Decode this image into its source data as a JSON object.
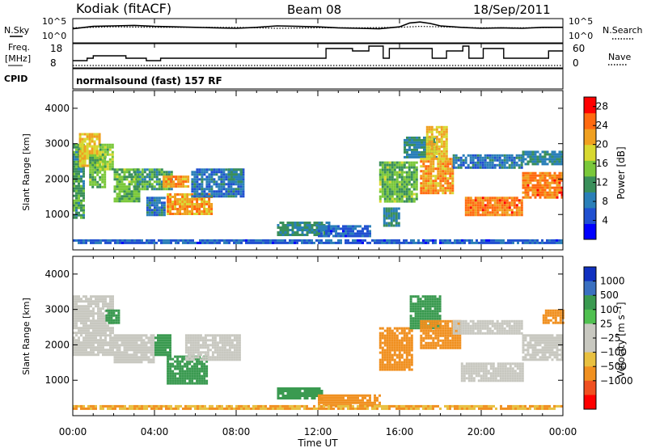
{
  "header": {
    "station": "Kodiak (fitACF)",
    "beam": "Beam 08",
    "date": "18/Sep/2011"
  },
  "status_panel": {
    "left_labels": {
      "nsky": "N.Sky",
      "freq_line1": "Freq.",
      "freq_line2": "[MHz]",
      "cpid": "CPID"
    },
    "right_labels": {
      "nsearch": "N.Search",
      "nave": "Nave"
    },
    "noise_ticks": [
      "10^5",
      "10^0"
    ],
    "freq_ticks": [
      "18",
      "8"
    ],
    "nave_ticks": [
      "60",
      "0"
    ],
    "cpid_text": "normalsound (fast) 157 RF"
  },
  "chart_data": [
    {
      "type": "line",
      "title": "",
      "series": [
        {
          "name": "N.Sky",
          "style": "solid",
          "x": [
            0,
            1,
            2,
            3,
            4,
            5,
            6,
            7,
            8,
            9,
            10,
            11,
            12,
            13,
            14,
            15,
            16,
            16.5,
            17,
            17.5,
            18,
            19,
            20,
            21,
            22,
            23,
            24
          ],
          "y": [
            2.9,
            3.4,
            3.5,
            3.6,
            3.4,
            3.3,
            3.2,
            3.1,
            3.0,
            3.2,
            3.5,
            3.4,
            3.3,
            3.1,
            3.0,
            2.9,
            3.3,
            4.1,
            4.3,
            4.0,
            3.5,
            3.2,
            3.0,
            3.1,
            3.0,
            3.2,
            3.2
          ]
        },
        {
          "name": "N.Search",
          "style": "dotted",
          "x": [
            0,
            2,
            4,
            6,
            8,
            10,
            12,
            14,
            16,
            17,
            18,
            20,
            22,
            24
          ],
          "y": [
            3.1,
            3.3,
            3.2,
            3.2,
            3.2,
            3.0,
            3.1,
            3.1,
            3.2,
            3.4,
            3.3,
            3.1,
            3.1,
            3.2
          ]
        }
      ],
      "ylim_log10": [
        0,
        5
      ]
    },
    {
      "type": "line",
      "title": "",
      "series": [
        {
          "name": "Freq. [MHz]",
          "style": "step",
          "x": [
            0,
            0.7,
            1.0,
            2.6,
            3.1,
            3.6,
            4.3,
            9.5,
            10.1,
            11.3,
            12.0,
            12.4,
            13.7,
            14.5,
            15.0,
            15.2,
            15.5,
            16.4,
            17.1,
            17.6,
            18.3,
            19.1,
            19.4,
            20.1,
            21.1,
            21.5,
            23.3,
            24
          ],
          "y": [
            11,
            12,
            13,
            12,
            12,
            11,
            12,
            12,
            12,
            12,
            12,
            16,
            15,
            17,
            17,
            12,
            16,
            16,
            16,
            12,
            15,
            17,
            12,
            16,
            12,
            12,
            15,
            15
          ]
        },
        {
          "name": "Nave",
          "style": "dotted",
          "x": [
            0,
            4,
            8,
            12,
            16,
            20,
            24
          ],
          "y": [
            6,
            6,
            6,
            6,
            6,
            6,
            6
          ]
        }
      ],
      "ylim": [
        8,
        18
      ],
      "y2lim": [
        0,
        60
      ],
      "yticks": [
        8,
        18
      ],
      "y2ticks": [
        0,
        60
      ]
    },
    {
      "type": "heatmap",
      "title": "",
      "ylabel": "Slant Range [km]",
      "xlabel": "Time UT",
      "xlim": [
        0,
        24
      ],
      "ylim": [
        0,
        4500
      ],
      "yticks": [
        1000,
        2000,
        3000,
        4000
      ],
      "xticks": [
        "00:00",
        "04:00",
        "08:00",
        "12:00",
        "16:00",
        "20:00",
        "00:00"
      ],
      "colorbar": {
        "label": "Power [dB]",
        "ticks": [
          4,
          8,
          12,
          16,
          20,
          24,
          28
        ],
        "range": [
          0,
          30
        ],
        "colors": [
          "#0000ff",
          "#2050d0",
          "#2a7fb8",
          "#3a8f5a",
          "#7ac83a",
          "#d8d830",
          "#f0a020",
          "#ff6a10",
          "#ff0000"
        ]
      },
      "regions": [
        {
          "t0": 0.0,
          "t1": 0.5,
          "r0": 900,
          "r1": 3000,
          "value": 12
        },
        {
          "t0": 0.3,
          "t1": 1.3,
          "r0": 2400,
          "r1": 3300,
          "value": 20
        },
        {
          "t0": 0.8,
          "t1": 1.6,
          "r0": 1800,
          "r1": 2700,
          "value": 14
        },
        {
          "t0": 1.3,
          "t1": 2.0,
          "r0": 2300,
          "r1": 3000,
          "value": 16
        },
        {
          "t0": 2.0,
          "t1": 3.2,
          "r0": 1400,
          "r1": 2300,
          "value": 14
        },
        {
          "t0": 3.0,
          "t1": 4.8,
          "r0": 1700,
          "r1": 2300,
          "value": 12
        },
        {
          "t0": 4.4,
          "t1": 5.6,
          "r0": 1800,
          "r1": 2100,
          "value": 22
        },
        {
          "t0": 3.6,
          "t1": 4.5,
          "r0": 1000,
          "r1": 1500,
          "value": 8
        },
        {
          "t0": 4.6,
          "t1": 6.8,
          "r0": 1000,
          "r1": 1600,
          "value": 22
        },
        {
          "t0": 5.8,
          "t1": 8.3,
          "r0": 1500,
          "r1": 2300,
          "value": 8
        },
        {
          "t0": 7.6,
          "t1": 8.2,
          "r0": 1900,
          "r1": 2300,
          "value": 10
        },
        {
          "t0": 10.0,
          "t1": 12.6,
          "r0": 400,
          "r1": 800,
          "value": 10
        },
        {
          "t0": 12.0,
          "t1": 14.6,
          "r0": 400,
          "r1": 700,
          "value": 6
        },
        {
          "t0": 15.0,
          "t1": 16.8,
          "r0": 1400,
          "r1": 2500,
          "value": 14
        },
        {
          "t0": 15.2,
          "t1": 16.0,
          "r0": 700,
          "r1": 1200,
          "value": 10
        },
        {
          "t0": 16.2,
          "t1": 17.8,
          "r0": 2600,
          "r1": 3200,
          "value": 10
        },
        {
          "t0": 17.0,
          "t1": 18.6,
          "r0": 1600,
          "r1": 2600,
          "value": 22
        },
        {
          "t0": 17.3,
          "t1": 18.3,
          "r0": 2600,
          "r1": 3500,
          "value": 20
        },
        {
          "t0": 18.6,
          "t1": 22.0,
          "r0": 2300,
          "r1": 2700,
          "value": 8
        },
        {
          "t0": 19.2,
          "t1": 22.0,
          "r0": 1000,
          "r1": 1500,
          "value": 24
        },
        {
          "t0": 22.0,
          "t1": 24.0,
          "r0": 1500,
          "r1": 2200,
          "value": 24
        },
        {
          "t0": 22.0,
          "t1": 24.0,
          "r0": 2400,
          "r1": 2800,
          "value": 10
        },
        {
          "t0": 0.0,
          "t1": 24.0,
          "r0": 180,
          "r1": 300,
          "value": 6
        }
      ]
    },
    {
      "type": "heatmap",
      "title": "",
      "ylabel": "Slant Range [km]",
      "xlabel": "Time UT",
      "xlim": [
        0,
        24
      ],
      "ylim": [
        0,
        4500
      ],
      "yticks": [
        1000,
        2000,
        3000,
        4000
      ],
      "xticks": [
        "00:00",
        "04:00",
        "08:00",
        "12:00",
        "16:00",
        "20:00",
        "00:00"
      ],
      "colorbar": {
        "label": "Velocity [m s⁻¹]",
        "ticks": [
          "1000",
          "500",
          "100",
          "25",
          "−25",
          "−100",
          "−500",
          "−1000"
        ],
        "colors": [
          "#1030c0",
          "#3a70c0",
          "#3a9a50",
          "#50c050",
          "#c8c8c0",
          "#c8c8c0",
          "#e8c040",
          "#f09020",
          "#f05020",
          "#ff0000"
        ]
      },
      "regions": [
        {
          "t0": 0.0,
          "t1": 2.0,
          "r0": 1700,
          "r1": 3400,
          "value": 0
        },
        {
          "t0": 2.0,
          "t1": 4.0,
          "r0": 1500,
          "r1": 2300,
          "value": 0
        },
        {
          "t0": 4.0,
          "t1": 4.8,
          "r0": 1700,
          "r1": 2300,
          "value": 150
        },
        {
          "t0": 4.6,
          "t1": 6.6,
          "r0": 900,
          "r1": 1700,
          "value": 80
        },
        {
          "t0": 5.5,
          "t1": 8.2,
          "r0": 1600,
          "r1": 2300,
          "value": 0
        },
        {
          "t0": 1.6,
          "t1": 2.2,
          "r0": 2600,
          "r1": 3000,
          "value": 200
        },
        {
          "t0": 10.0,
          "t1": 12.2,
          "r0": 500,
          "r1": 800,
          "value": 80
        },
        {
          "t0": 12.0,
          "t1": 15.0,
          "r0": 300,
          "r1": 600,
          "value": -150
        },
        {
          "t0": 15.0,
          "t1": 16.6,
          "r0": 1300,
          "r1": 2500,
          "value": -200
        },
        {
          "t0": 16.5,
          "t1": 18.0,
          "r0": 2500,
          "r1": 3400,
          "value": 200
        },
        {
          "t0": 17.0,
          "t1": 19.0,
          "r0": 1900,
          "r1": 2700,
          "value": -80
        },
        {
          "t0": 19.0,
          "t1": 22.0,
          "r0": 1000,
          "r1": 1500,
          "value": 0
        },
        {
          "t0": 18.6,
          "t1": 22.0,
          "r0": 2300,
          "r1": 2700,
          "value": 0
        },
        {
          "t0": 22.0,
          "t1": 24.0,
          "r0": 1600,
          "r1": 2300,
          "value": 0
        },
        {
          "t0": 23.0,
          "t1": 24.0,
          "r0": 2600,
          "r1": 3000,
          "value": -100
        },
        {
          "t0": 0.0,
          "t1": 24.0,
          "r0": 180,
          "r1": 300,
          "value": -60
        }
      ]
    }
  ]
}
